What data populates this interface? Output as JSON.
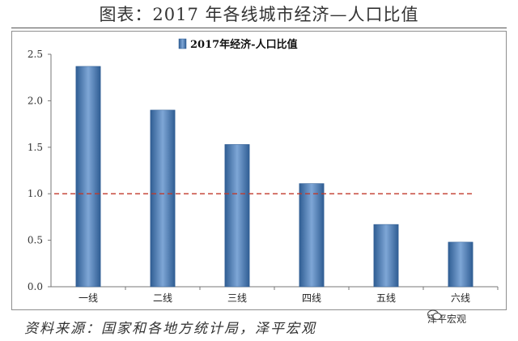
{
  "figure": {
    "title": "图表：2017 年各线城市经济—人口比值",
    "source": "资料来源：国家和各地方统计局，泽平宏观",
    "watermark_tag": "泽平宏观"
  },
  "chart_data": {
    "type": "bar",
    "categories": [
      "一线",
      "二线",
      "三线",
      "四线",
      "五线",
      "六线"
    ],
    "series": [
      {
        "name": "2017年经济-人口比值",
        "values": [
          2.37,
          1.9,
          1.53,
          1.11,
          0.67,
          0.48
        ]
      }
    ],
    "title": "",
    "xlabel": "",
    "ylabel": "",
    "ylim": [
      0,
      2.5
    ],
    "yticks": [
      0.0,
      0.5,
      1.0,
      1.5,
      2.0,
      2.5
    ],
    "ytick_labels": [
      "0.0",
      "0.5",
      "1.0",
      "1.5",
      "2.0",
      "2.5"
    ],
    "reference_line": {
      "y": 1.0,
      "style": "dashed",
      "color": "#c0392b"
    },
    "legend_position": "top-center",
    "grid": false,
    "bar_color": "#4f7fb8"
  }
}
